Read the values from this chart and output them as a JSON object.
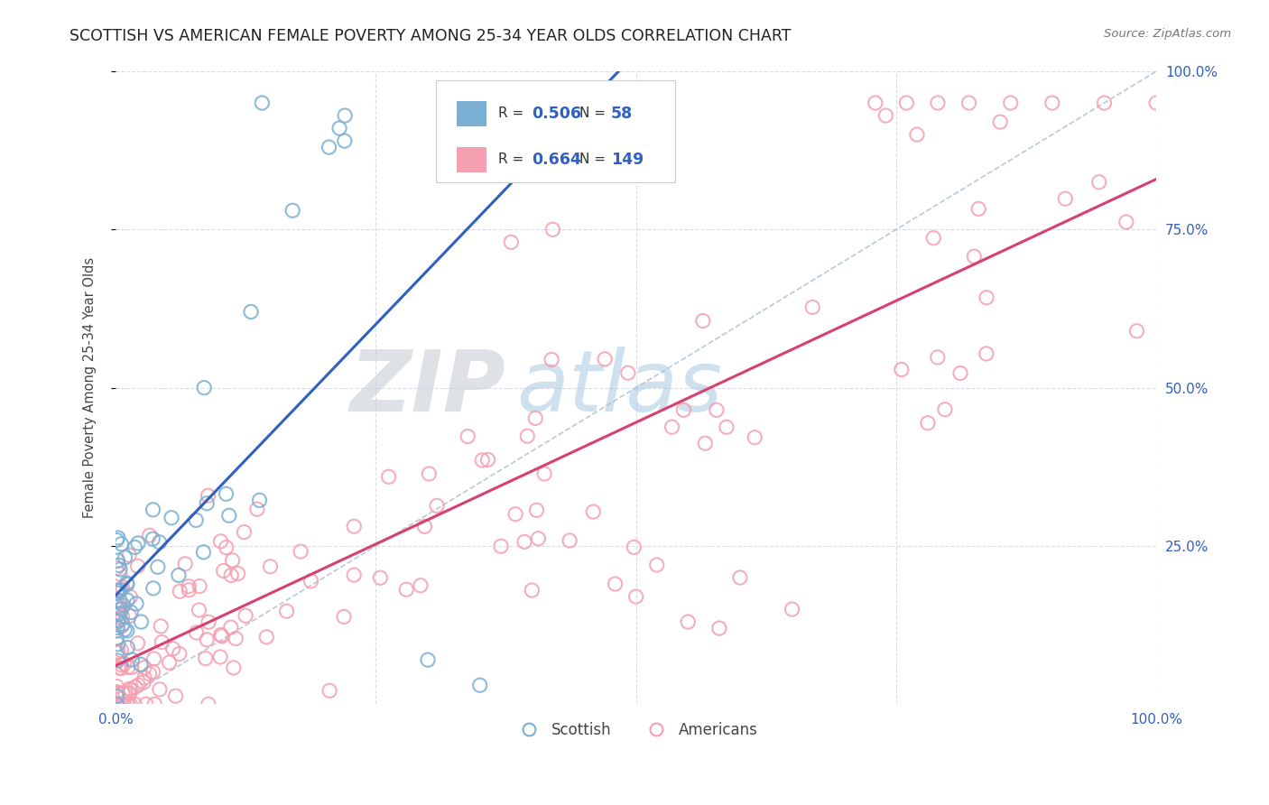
{
  "title": "SCOTTISH VS AMERICAN FEMALE POVERTY AMONG 25-34 YEAR OLDS CORRELATION CHART",
  "source": "Source: ZipAtlas.com",
  "ylabel": "Female Poverty Among 25-34 Year Olds",
  "xlim": [
    0,
    1.0
  ],
  "ylim": [
    0,
    1.0
  ],
  "scottish_R": 0.506,
  "scottish_N": 58,
  "american_R": 0.664,
  "american_N": 149,
  "scottish_color": "#7bafd4",
  "american_color": "#f4a0b0",
  "scottish_line_color": "#3060c0",
  "american_line_color": "#d84070",
  "ref_line_color": "#aabbcc",
  "watermark_zip": "ZIP",
  "watermark_atlas": "atlas",
  "background_color": "#ffffff",
  "grid_color": "#d8dde8",
  "title_color": "#222222",
  "source_color": "#777777",
  "axis_label_color": "#444444",
  "tick_color": "#3060c0",
  "legend_border_color": "#cccccc",
  "legend_text_color": "#333333",
  "legend_value_color": "#3060c0"
}
